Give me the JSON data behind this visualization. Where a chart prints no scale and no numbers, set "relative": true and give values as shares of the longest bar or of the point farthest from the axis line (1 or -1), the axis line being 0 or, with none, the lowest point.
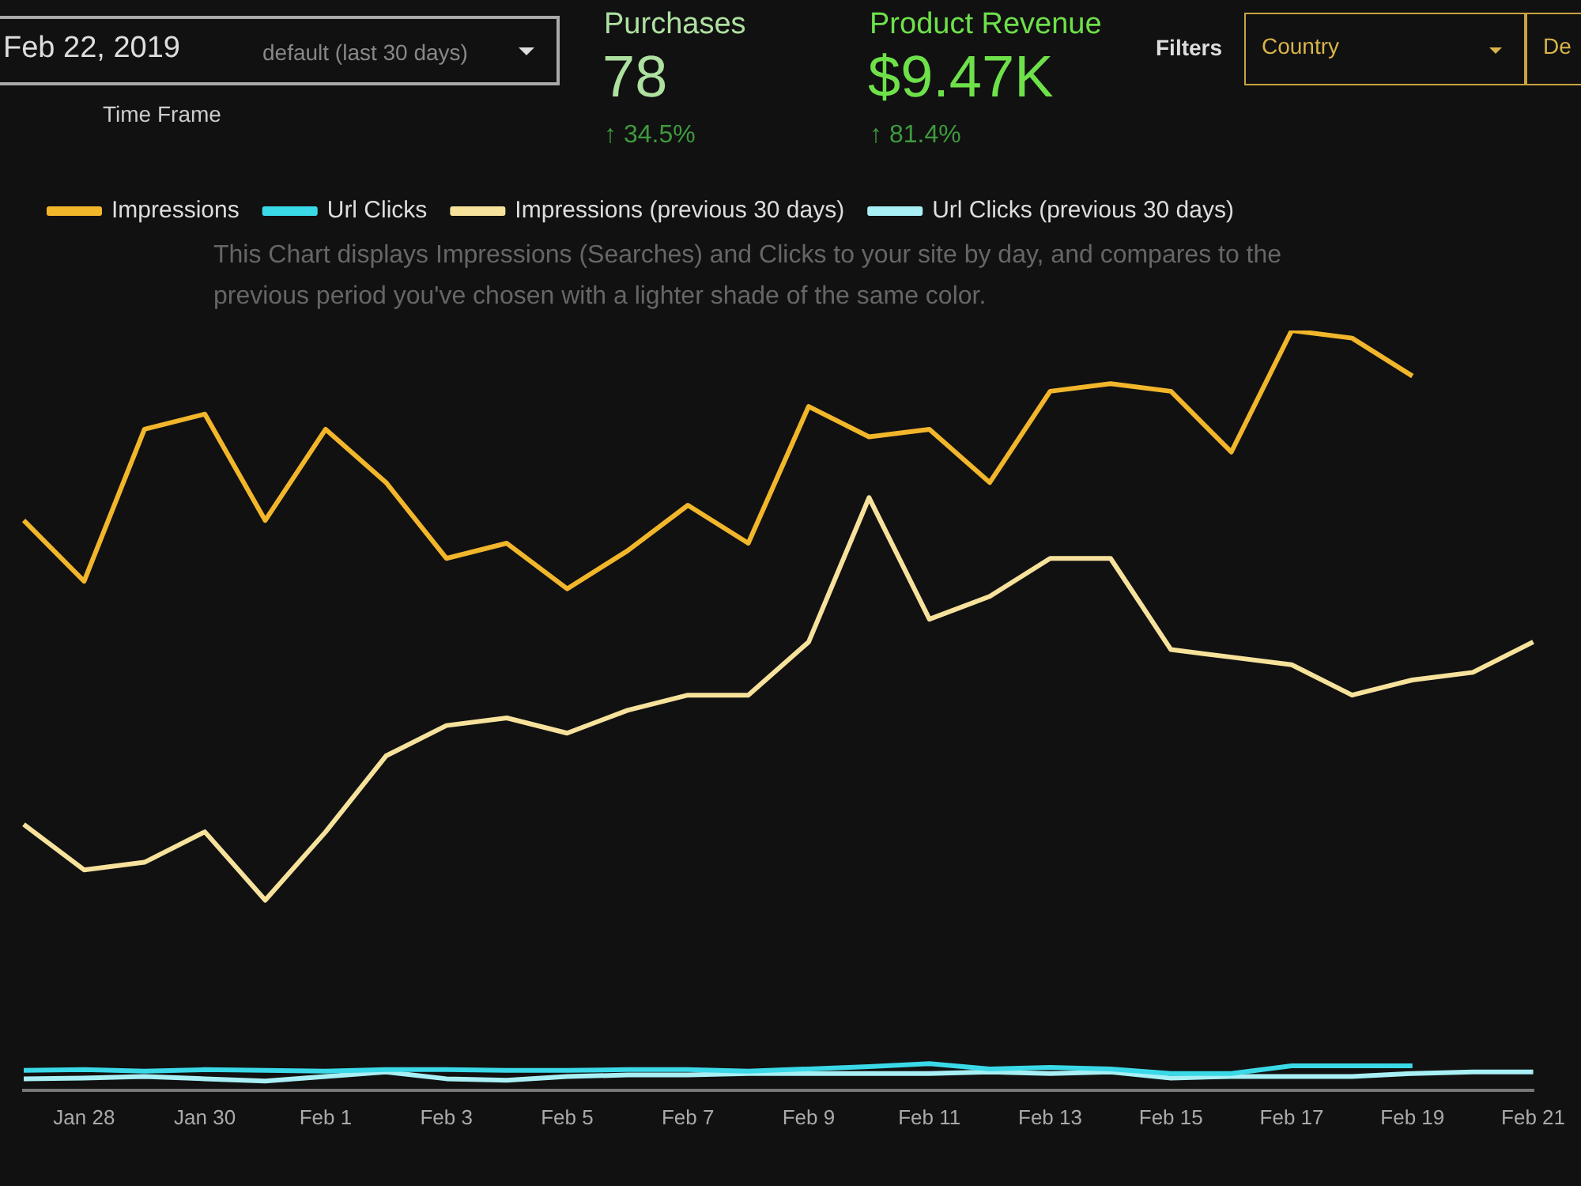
{
  "chart_data": {
    "type": "line",
    "relative": true,
    "legend": "top",
    "categories": [
      null,
      "Jan 28",
      null,
      "Jan 30",
      null,
      "Feb 1",
      null,
      "Feb 3",
      null,
      "Feb 5",
      null,
      "Feb 7",
      null,
      "Feb 9",
      null,
      "Feb 11",
      null,
      "Feb 13",
      null,
      "Feb 15",
      null,
      "Feb 17",
      null,
      "Feb 19",
      null,
      "Feb 21"
    ],
    "series": [
      {
        "name": "Impressions",
        "color": "#f2b62b",
        "values": [
          0.75,
          0.67,
          0.87,
          0.89,
          0.75,
          0.87,
          0.8,
          0.7,
          0.72,
          0.66,
          0.71,
          0.77,
          0.72,
          0.9,
          0.86,
          0.87,
          0.8,
          0.92,
          0.93,
          0.92,
          0.84,
          1.0,
          0.99,
          0.94,
          null,
          null
        ]
      },
      {
        "name": "Url Clicks",
        "color": "#3ad9e8",
        "values": [
          0.026,
          0.027,
          0.025,
          0.027,
          0.026,
          0.025,
          0.027,
          0.027,
          0.026,
          0.026,
          0.027,
          0.027,
          0.025,
          0.028,
          0.031,
          0.035,
          0.028,
          0.03,
          0.028,
          0.022,
          0.022,
          0.032,
          0.032,
          0.032,
          null,
          null
        ]
      },
      {
        "name": "Impressions (previous 30 days)",
        "color": "#f7e29c",
        "values": [
          0.35,
          0.29,
          0.3,
          0.34,
          0.25,
          0.34,
          0.44,
          0.48,
          0.49,
          0.47,
          0.5,
          0.52,
          0.52,
          0.59,
          0.78,
          0.62,
          0.65,
          0.7,
          0.7,
          0.58,
          0.57,
          0.56,
          0.52,
          0.54,
          0.55,
          0.59
        ]
      },
      {
        "name": "Url Clicks (previous 30 days)",
        "color": "#a8f0f5",
        "values": [
          0.015,
          0.016,
          0.018,
          0.015,
          0.012,
          0.018,
          0.024,
          0.015,
          0.013,
          0.018,
          0.02,
          0.02,
          0.022,
          0.022,
          0.022,
          0.022,
          0.024,
          0.022,
          0.024,
          0.016,
          0.018,
          0.018,
          0.018,
          0.022,
          0.024,
          0.024
        ]
      }
    ],
    "annotations": [
      "Feb 22, 2019",
      "default (last 30 days)",
      "Time Frame",
      "Purchases",
      "78",
      "↑ 34.5%",
      "Product Revenue",
      "$9.47K",
      "↑ 81.4%",
      "Filters",
      "Country",
      "De",
      "This Chart displays Impressions (Searches) and Clicks to your site by day, and compares to the previous period you've chosen with a lighter shade of the same color."
    ]
  }
}
